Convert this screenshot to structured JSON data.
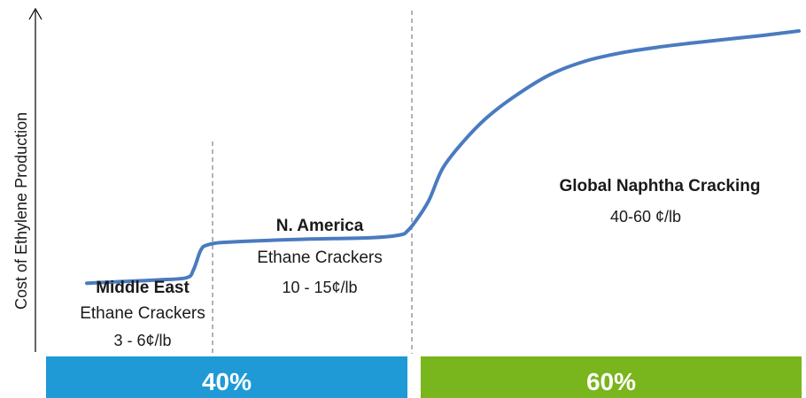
{
  "chart_data": {
    "type": "line",
    "ylabel": "Cost of Ethylene Production",
    "x": [
      0,
      5,
      10,
      14,
      15,
      16,
      17,
      20,
      30,
      40,
      44,
      45,
      46,
      48,
      50,
      53,
      56,
      60,
      65,
      70,
      75,
      80,
      85,
      90,
      95,
      100
    ],
    "values": [
      4,
      4.3,
      4.6,
      5.0,
      6.5,
      10.0,
      11.0,
      11.5,
      12.0,
      12.3,
      12.8,
      13.5,
      15.0,
      19.0,
      25.0,
      30.0,
      34.0,
      38.0,
      42.0,
      44.5,
      46.0,
      47.0,
      47.8,
      48.5,
      49.2,
      50.0
    ],
    "segments": [
      {
        "region": "Middle East",
        "type": "Ethane Crackers",
        "cost": "3 - 6¢/lb"
      },
      {
        "region": "N. America",
        "type": "Ethane Crackers",
        "cost": "10 - 15¢/lb"
      },
      {
        "region": "Global Naphtha Cracking",
        "type": "",
        "cost": "40-60 ¢/lb"
      }
    ],
    "bars": [
      {
        "label": "40%",
        "share": 40,
        "color": "#1f9ad6"
      },
      {
        "label": "60%",
        "share": 60,
        "color": "#79b51c"
      }
    ],
    "line_color": "#4a7bbf",
    "divider_color": "#808080"
  }
}
